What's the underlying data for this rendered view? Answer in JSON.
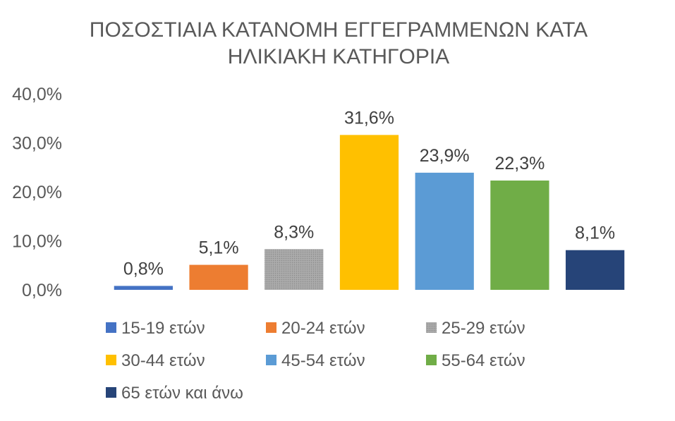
{
  "chart_data": {
    "type": "bar",
    "title_lines": [
      "ΠΟΣΟΣΤΙΑΙΑ ΚΑΤΑΝΟΜΗ ΕΓΓΕΓΡΑΜΜΕΝΩΝ  ΚΑΤΑ",
      "ΗΛΙΚΙΑΚΗ ΚΑΤΗΓΟΡΙΑ"
    ],
    "xlabel": "",
    "ylabel": "",
    "ylim": [
      0,
      40
    ],
    "yticks": [
      "0,0%",
      "10,0%",
      "20,0%",
      "30,0%",
      "40,0%"
    ],
    "grid": false,
    "legend_position": "bottom",
    "categories": [
      "15-19 ετών",
      "20-24 ετών",
      "25-29 ετών",
      "30-44 ετών",
      "45-54 ετών",
      "55-64 ετών",
      "65 ετών και άνω"
    ],
    "values": [
      0.8,
      5.1,
      8.3,
      31.6,
      23.9,
      22.3,
      8.1
    ],
    "value_labels": [
      "0,8%",
      "5,1%",
      "8,3%",
      "31,6%",
      "23,9%",
      "22,3%",
      "8,1%"
    ],
    "colors": [
      "#4472C4",
      "#ED7D31",
      "#A5A5A5",
      "#FFC000",
      "#5B9BD5",
      "#70AD47",
      "#264478"
    ]
  }
}
